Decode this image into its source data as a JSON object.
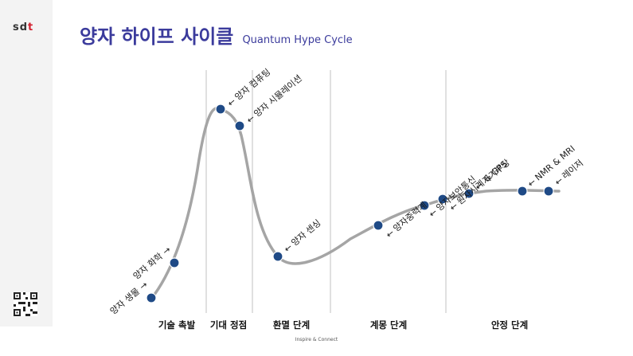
{
  "logo": {
    "text_main": "sd",
    "text_accent": "t"
  },
  "title": {
    "korean": "양자 하이프 사이클",
    "english": "Quantum Hype Cycle"
  },
  "phases": [
    "기술 촉발",
    "기대 정점",
    "환멸 단계",
    "계몽 단계",
    "안정 단계"
  ],
  "technologies": [
    {
      "label": "양자 생물",
      "phase": "기술 촉발"
    },
    {
      "label": "양자 화학",
      "phase": "기술 촉발"
    },
    {
      "label": "양자 컴퓨팅",
      "phase": "기대 정점"
    },
    {
      "label": "양자 시뮬레이션",
      "phase": "기대 정점"
    },
    {
      "label": "양자 센싱",
      "phase": "환멸 단계"
    },
    {
      "label": "양자중력계",
      "phase": "계몽 단계"
    },
    {
      "label": "양자보안통신",
      "phase": "계몽 단계"
    },
    {
      "label": "원자시계 & GPS",
      "phase": "계몽 단계"
    },
    {
      "label": "자기부상",
      "phase": "안정 단계"
    },
    {
      "label": "NMR & MRI",
      "phase": "안정 단계"
    },
    {
      "label": "레이저",
      "phase": "안정 단계"
    }
  ],
  "arrow_glyph": "←",
  "footer": "Inspire & Connect",
  "colors": {
    "title": "#3b3b9c",
    "marker": "#1f4a86",
    "curve": "#a5a5a5",
    "divider": "#cfcfcf",
    "logo_accent": "#d3202f"
  }
}
